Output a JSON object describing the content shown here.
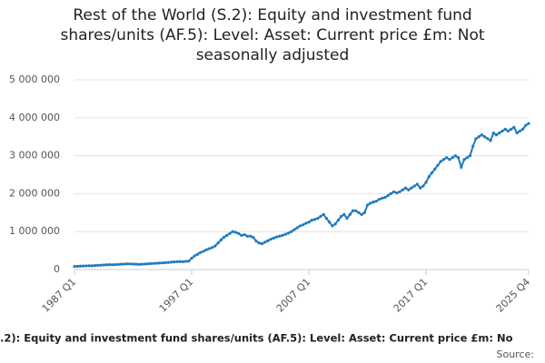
{
  "chart_data": {
    "type": "line",
    "title": "Rest of the World (S.2): Equity and investment fund shares/units (AF.5): Level: Asset: Current price £m: Not seasonally adjusted",
    "footer": ".2): Equity and investment fund shares/units (AF.5): Level: Asset: Current price £m: No",
    "source": "Source:",
    "categories": [
      "1987 Q1",
      null,
      null,
      null,
      null,
      null,
      null,
      null,
      null,
      null,
      null,
      null,
      null,
      null,
      null,
      null,
      null,
      null,
      null,
      null,
      null,
      null,
      null,
      null,
      null,
      null,
      null,
      null,
      null,
      null,
      null,
      null,
      null,
      null,
      null,
      null,
      null,
      null,
      null,
      null,
      "1997 Q1",
      null,
      null,
      null,
      null,
      null,
      null,
      null,
      null,
      null,
      null,
      null,
      null,
      null,
      null,
      null,
      null,
      null,
      null,
      null,
      null,
      null,
      null,
      null,
      null,
      null,
      null,
      null,
      null,
      null,
      null,
      null,
      null,
      null,
      null,
      null,
      null,
      null,
      null,
      null,
      "2007 Q1",
      null,
      null,
      null,
      null,
      null,
      null,
      null,
      null,
      null,
      null,
      null,
      null,
      null,
      null,
      null,
      null,
      null,
      null,
      null,
      null,
      null,
      null,
      null,
      null,
      null,
      null,
      null,
      null,
      null,
      null,
      null,
      null,
      null,
      null,
      null,
      null,
      null,
      null,
      null,
      "2017 Q1",
      null,
      null,
      null,
      null,
      null,
      null,
      null,
      null,
      null,
      null,
      null,
      null,
      null,
      null,
      null,
      null,
      null,
      null,
      null,
      null,
      null,
      null,
      null,
      null,
      null,
      null,
      null,
      null,
      null,
      null,
      null,
      null,
      null,
      null,
      "2025 Q4"
    ],
    "series": [
      {
        "color": "#1f7bbf",
        "values": [
          80000,
          85000,
          90000,
          92000,
          95000,
          98000,
          100000,
          105000,
          110000,
          115000,
          120000,
          125000,
          128000,
          125000,
          130000,
          135000,
          140000,
          145000,
          150000,
          148000,
          145000,
          140000,
          135000,
          140000,
          145000,
          150000,
          155000,
          160000,
          165000,
          170000,
          175000,
          180000,
          185000,
          195000,
          200000,
          205000,
          210000,
          205000,
          215000,
          220000,
          300000,
          360000,
          400000,
          450000,
          480000,
          520000,
          550000,
          580000,
          620000,
          700000,
          780000,
          850000,
          900000,
          950000,
          1000000,
          980000,
          950000,
          900000,
          920000,
          880000,
          880000,
          850000,
          750000,
          700000,
          680000,
          720000,
          760000,
          800000,
          830000,
          860000,
          880000,
          900000,
          930000,
          960000,
          1000000,
          1050000,
          1100000,
          1150000,
          1180000,
          1220000,
          1250000,
          1300000,
          1320000,
          1350000,
          1400000,
          1450000,
          1350000,
          1250000,
          1150000,
          1200000,
          1300000,
          1400000,
          1450000,
          1350000,
          1450000,
          1550000,
          1550000,
          1500000,
          1450000,
          1500000,
          1700000,
          1750000,
          1780000,
          1800000,
          1850000,
          1880000,
          1900000,
          1950000,
          2000000,
          2050000,
          2020000,
          2050000,
          2100000,
          2150000,
          2100000,
          2150000,
          2200000,
          2250000,
          2150000,
          2200000,
          2300000,
          2450000,
          2550000,
          2650000,
          2750000,
          2850000,
          2900000,
          2950000,
          2900000,
          2950000,
          3000000,
          2950000,
          2700000,
          2900000,
          2950000,
          3000000,
          3250000,
          3450000,
          3500000,
          3550000,
          3500000,
          3450000,
          3400000,
          3600000,
          3550000,
          3600000,
          3650000,
          3700000,
          3650000,
          3700000,
          3750000,
          3600000,
          3650000,
          3700000,
          3800000,
          3850000
        ]
      }
    ],
    "ylim": [
      0,
      5000000
    ],
    "yticks": [
      0,
      {
        "value": 1000000,
        "label": "1 000 000"
      },
      {
        "value": 2000000,
        "label": "2 000 000"
      },
      {
        "value": 3000000,
        "label": "3 000 000"
      },
      {
        "value": 4000000,
        "label": "4 000 000"
      },
      {
        "value": 5000000,
        "label": "5 000 000"
      }
    ],
    "grid": true
  }
}
